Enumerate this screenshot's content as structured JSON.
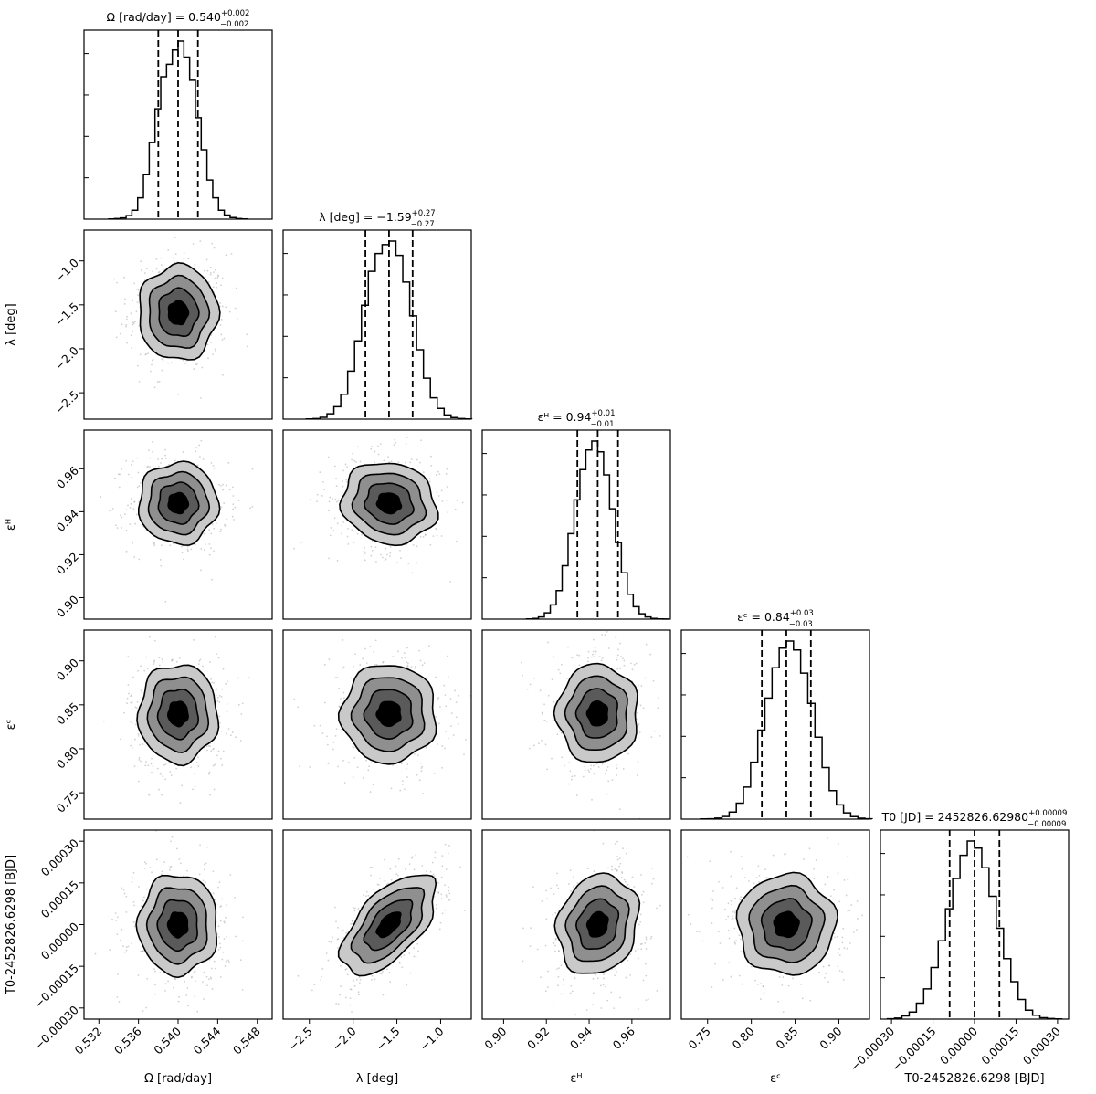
{
  "chart_data": {
    "type": "corner",
    "parameters": [
      {
        "key": "omega",
        "axis_label": "Ω [rad/day]",
        "title_main": "Ω [rad/day] = 0.540",
        "title_sup": "+0.002",
        "title_sub": "−0.002",
        "median": 0.54,
        "err_lo": 0.002,
        "err_hi": 0.002,
        "range": [
          0.5305,
          0.5495
        ],
        "ticks": [
          0.532,
          0.536,
          0.54,
          0.544,
          0.548
        ],
        "tick_labels": [
          "0.532",
          "0.536",
          "0.540",
          "0.544",
          "0.548"
        ]
      },
      {
        "key": "lambda",
        "axis_label": "λ [deg]",
        "title_main": "λ [deg] = −1.59",
        "title_sup": "+0.27",
        "title_sub": "−0.27",
        "median": -1.59,
        "err_lo": 0.27,
        "err_hi": 0.27,
        "range": [
          -2.8,
          -0.65
        ],
        "ticks": [
          -2.5,
          -2.0,
          -1.5,
          -1.0
        ],
        "tick_labels": [
          "−2.5",
          "−2.0",
          "−1.5",
          "−1.0"
        ]
      },
      {
        "key": "eps_h",
        "axis_label": "εᴴ",
        "title_main": "εᴴ = 0.94",
        "title_sup": "+0.01",
        "title_sub": "−0.01",
        "median": 0.944,
        "err_lo": 0.0095,
        "err_hi": 0.0095,
        "range": [
          0.89,
          0.978
        ],
        "ticks": [
          0.9,
          0.92,
          0.94,
          0.96
        ],
        "tick_labels": [
          "0.90",
          "0.92",
          "0.94",
          "0.96"
        ]
      },
      {
        "key": "eps_c",
        "axis_label": "εᶜ",
        "title_main": "εᶜ = 0.84",
        "title_sup": "+0.03",
        "title_sub": "−0.03",
        "median": 0.84,
        "err_lo": 0.028,
        "err_hi": 0.028,
        "range": [
          0.72,
          0.935
        ],
        "ticks": [
          0.75,
          0.8,
          0.85,
          0.9
        ],
        "tick_labels": [
          "0.75",
          "0.80",
          "0.85",
          "0.90"
        ]
      },
      {
        "key": "t0",
        "axis_label": "T0-2452826.6298 [BJD]",
        "title_main": "T0 [JD] = 2452826.62980",
        "title_sup": "+0.00009",
        "title_sub": "−0.00009",
        "median": 0.0,
        "err_lo": 9e-05,
        "err_hi": 9e-05,
        "range": [
          -0.00034,
          0.00034
        ],
        "ticks": [
          -0.0003,
          -0.00015,
          0.0,
          0.00015,
          0.0003
        ],
        "tick_labels": [
          "−0.00030",
          "−0.00015",
          "0.00000",
          "0.00015",
          "0.00030"
        ]
      }
    ],
    "histograms": [
      [
        0.001,
        0.003,
        0.007,
        0.02,
        0.05,
        0.12,
        0.25,
        0.43,
        0.62,
        0.8,
        0.87,
        0.95,
        1.0,
        0.91,
        0.78,
        0.57,
        0.39,
        0.22,
        0.12,
        0.05,
        0.023,
        0.009,
        0.003,
        0.001
      ],
      [
        0.001,
        0.003,
        0.01,
        0.03,
        0.07,
        0.14,
        0.27,
        0.44,
        0.64,
        0.83,
        0.93,
        0.98,
        1.0,
        0.92,
        0.77,
        0.58,
        0.39,
        0.23,
        0.12,
        0.06,
        0.024,
        0.009,
        0.003,
        0.001
      ],
      [
        0.001,
        0.004,
        0.012,
        0.035,
        0.08,
        0.16,
        0.3,
        0.48,
        0.67,
        0.84,
        0.95,
        1.0,
        0.94,
        0.81,
        0.62,
        0.43,
        0.26,
        0.14,
        0.07,
        0.03,
        0.012,
        0.004,
        0.001,
        0.0005
      ],
      [
        0.001,
        0.002,
        0.006,
        0.015,
        0.04,
        0.09,
        0.18,
        0.32,
        0.5,
        0.68,
        0.85,
        0.96,
        1.0,
        0.95,
        0.82,
        0.65,
        0.46,
        0.29,
        0.16,
        0.08,
        0.035,
        0.014,
        0.005,
        0.002
      ],
      [
        0.002,
        0.006,
        0.018,
        0.04,
        0.09,
        0.17,
        0.29,
        0.44,
        0.62,
        0.79,
        0.92,
        1.0,
        0.96,
        0.85,
        0.69,
        0.51,
        0.34,
        0.21,
        0.11,
        0.05,
        0.022,
        0.008,
        0.003,
        0.001
      ]
    ],
    "correlations": [
      [
        null,
        null,
        null,
        null,
        null
      ],
      [
        0.0,
        null,
        null,
        null,
        null
      ],
      [
        0.0,
        -0.1,
        null,
        null,
        null
      ],
      [
        0.0,
        0.0,
        0.0,
        null,
        null
      ],
      [
        0.0,
        0.6,
        0.15,
        0.0,
        null
      ]
    ],
    "contour_levels_sigma": [
      0.5,
      1.0,
      1.5,
      2.0
    ],
    "colors": {
      "scatter": "#9a9a9a",
      "contour_fills": [
        "#000000",
        "#5a5a5a",
        "#8f8f8f",
        "#c9c9c9"
      ],
      "lines": "#000000"
    }
  }
}
